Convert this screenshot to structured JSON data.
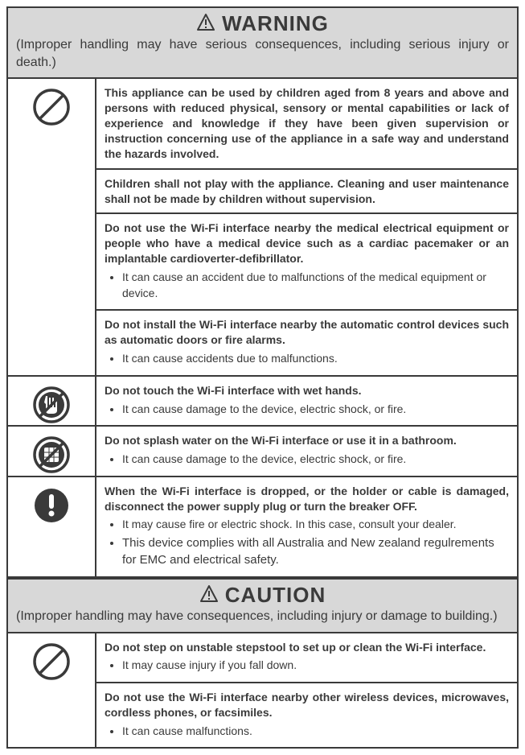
{
  "colors": {
    "border": "#3a3a3a",
    "header_bg": "#d8d8d8",
    "text": "#3a3a3a",
    "page_bg": "#ffffff"
  },
  "sections": [
    {
      "title": "WARNING",
      "subtitle": "(Improper handling may have serious consequences, including serious injury or death.)",
      "rows": [
        {
          "icon": "prohibit",
          "items": [
            {
              "title": "This appliance can be used by children aged from 8 years and above and persons with reduced physical, sensory or mental capabilities or lack of experience and knowledge if they have been given supervision or instruction concerning use of the appliance in a safe way and understand the hazards involved.",
              "bullets": []
            },
            {
              "title": "Children shall not play with the appliance. Cleaning and user maintenance shall not be made by children without supervision.",
              "bullets": []
            },
            {
              "title": "Do not use the Wi-Fi interface nearby the medical electrical equipment or people who have a medical device such as a cardiac pacemaker or an implantable cardioverter-defibrillator.",
              "bullets": [
                "It can cause an accident due to malfunctions of the medical equipment or device."
              ]
            },
            {
              "title": "Do not install the Wi-Fi interface nearby the automatic control devices such as automatic doors or fire alarms.",
              "bullets": [
                "It can cause accidents due to malfunctions."
              ]
            }
          ]
        },
        {
          "icon": "no-wet-hands",
          "items": [
            {
              "title": "Do not touch the Wi-Fi interface with wet hands.",
              "bullets": [
                "It can cause damage to the device, electric shock, or fire."
              ]
            }
          ]
        },
        {
          "icon": "no-water",
          "items": [
            {
              "title": "Do not splash water on the Wi-Fi interface or use it in a bathroom.",
              "bullets": [
                "It can cause damage to the device, electric shock, or fire."
              ]
            }
          ]
        },
        {
          "icon": "mandatory",
          "items": [
            {
              "title": "When the Wi-Fi interface is dropped, or the holder or cable is damaged, disconnect the power supply plug or turn the breaker OFF.",
              "bullets": [
                "It may cause fire or electric shock. In this case, consult your dealer.",
                "This device complies with all Australia and New zealand regulrements for EMC and electrical safety."
              ],
              "bullet_large_last": true
            }
          ]
        }
      ]
    },
    {
      "title": "CAUTION",
      "subtitle": "(Improper handling may have consequences, including injury or damage to building.)",
      "rows": [
        {
          "icon": "prohibit",
          "items": [
            {
              "title": "Do not step on unstable stepstool to set up or clean the Wi-Fi interface.",
              "bullets": [
                "It may cause injury if you fall down."
              ]
            },
            {
              "title": "Do not use the Wi-Fi interface nearby other wireless devices, microwaves, cordless phones, or facsimiles.",
              "bullets": [
                "It can cause malfunctions."
              ]
            }
          ]
        }
      ]
    }
  ]
}
